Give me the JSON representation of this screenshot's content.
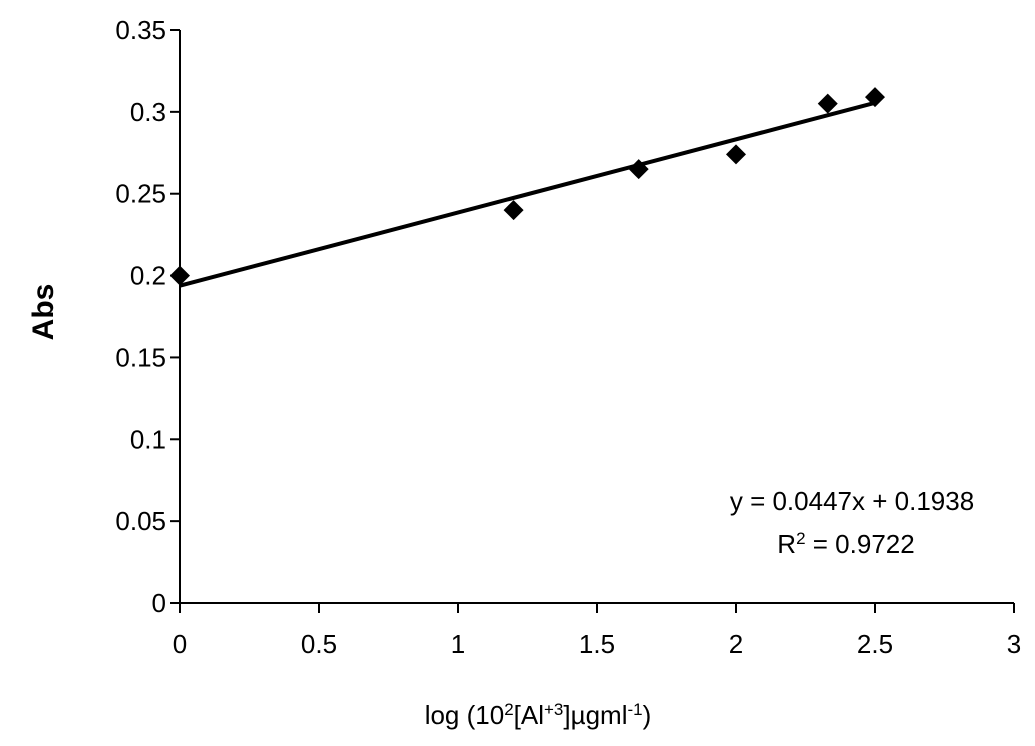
{
  "chart_data": {
    "type": "scatter",
    "xlabel": {
      "prefix": "log (10",
      "sup1": "2",
      "mid": "[Al",
      "sup2": "+3",
      "mid2": "]µgml",
      "sup3": "-1",
      "suffix": ")"
    },
    "ylabel": "Abs",
    "xlim": [
      0,
      3
    ],
    "ylim": [
      0,
      0.35
    ],
    "x_ticks": [
      "0",
      "0.5",
      "1",
      "1.5",
      "2",
      "2.5",
      "3"
    ],
    "y_ticks": [
      "0",
      "0.05",
      "0.1",
      "0.15",
      "0.2",
      "0.25",
      "0.3",
      "0.35"
    ],
    "grid": false,
    "marker": "diamond",
    "marker_color": "#000000",
    "series": [
      {
        "points": [
          {
            "x": 0.0,
            "y": 0.2
          },
          {
            "x": 1.2,
            "y": 0.24
          },
          {
            "x": 1.65,
            "y": 0.265
          },
          {
            "x": 2.0,
            "y": 0.274
          },
          {
            "x": 2.33,
            "y": 0.305
          },
          {
            "x": 2.5,
            "y": 0.309
          }
        ]
      }
    ],
    "trendline": {
      "slope": 0.0447,
      "intercept": 0.1938,
      "x_range": [
        0,
        2.5
      ],
      "equation": "y = 0.0447x + 0.1938",
      "r2_prefix": "R",
      "r2_sup": "2",
      "r2_suffix": " = 0.9722"
    }
  }
}
